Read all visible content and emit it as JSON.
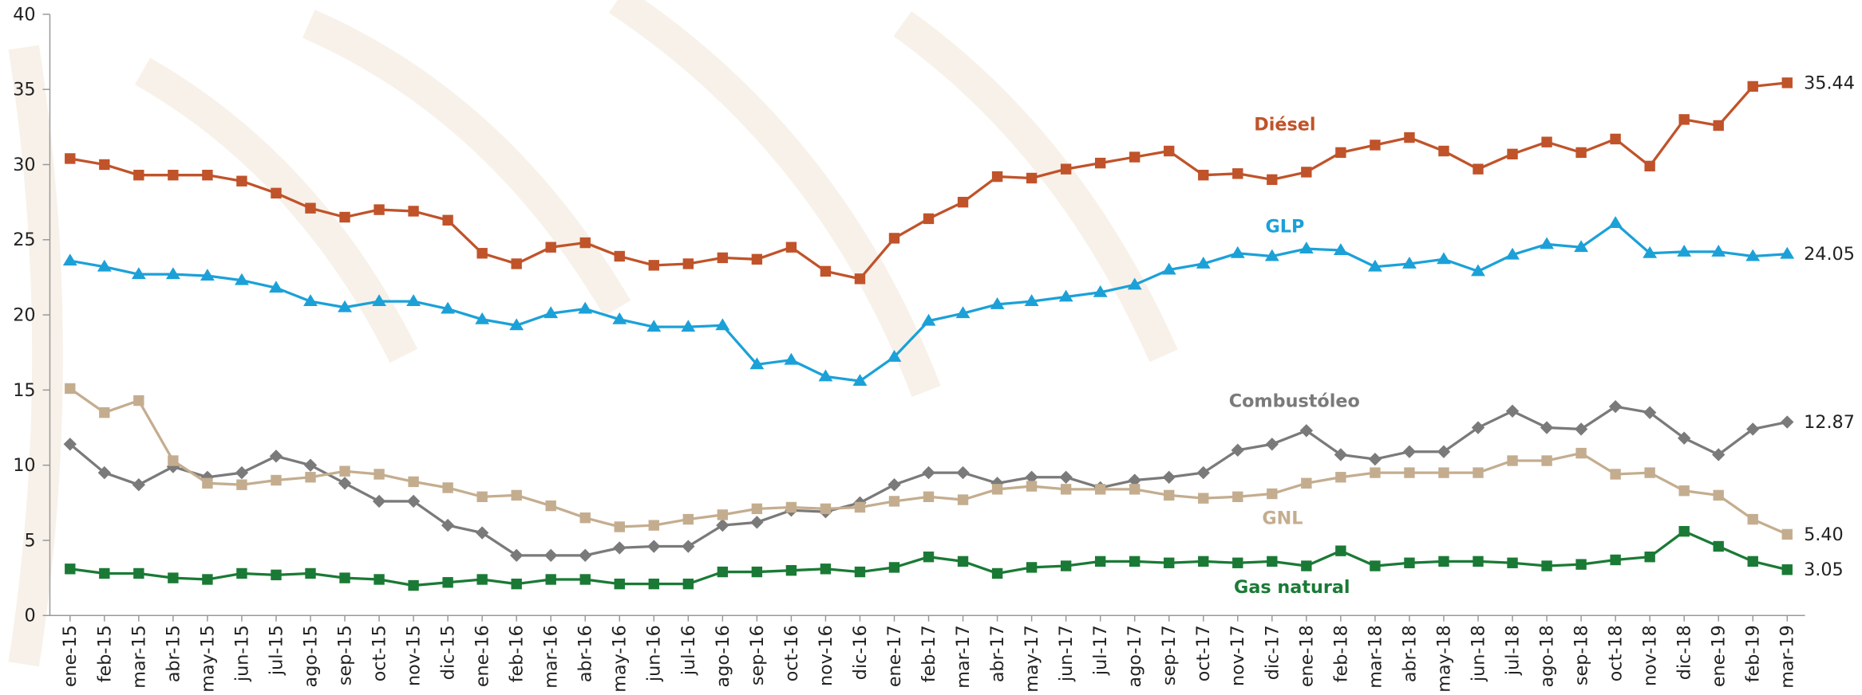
{
  "chart_data": {
    "type": "line",
    "categories": [
      "ene-15",
      "feb-15",
      "mar-15",
      "abr-15",
      "may-15",
      "jun-15",
      "jul-15",
      "ago-15",
      "sep-15",
      "oct-15",
      "nov-15",
      "dic-15",
      "ene-16",
      "feb-16",
      "mar-16",
      "abr-16",
      "may-16",
      "jun-16",
      "jul-16",
      "ago-16",
      "sep-16",
      "oct-16",
      "nov-16",
      "dic-16",
      "ene-17",
      "feb-17",
      "mar-17",
      "abr-17",
      "may-17",
      "jun-17",
      "jul-17",
      "ago-17",
      "sep-17",
      "oct-17",
      "nov-17",
      "dic-17",
      "ene-18",
      "feb-18",
      "mar-18",
      "abr-18",
      "may-18",
      "jun-18",
      "jul-18",
      "ago-18",
      "sep-18",
      "oct-18",
      "nov-18",
      "dic-18",
      "ene-19",
      "feb-19",
      "mar-19"
    ],
    "ylim": [
      0,
      40
    ],
    "yticks": [
      0,
      5,
      10,
      15,
      20,
      25,
      30,
      35,
      40
    ],
    "series": [
      {
        "name": "Diésel",
        "color": "#c0532a",
        "marker": "square",
        "values": [
          30.4,
          30.0,
          29.3,
          29.3,
          29.3,
          28.9,
          28.1,
          27.1,
          26.5,
          27.0,
          26.9,
          26.3,
          24.1,
          23.4,
          24.5,
          24.8,
          23.9,
          23.3,
          23.4,
          23.8,
          23.7,
          24.5,
          22.9,
          22.4,
          25.1,
          26.4,
          27.5,
          29.2,
          29.1,
          29.7,
          30.1,
          30.5,
          30.9,
          29.3,
          29.4,
          29.0,
          29.5,
          30.8,
          31.3,
          31.8,
          30.9,
          29.7,
          30.7,
          31.5,
          30.8,
          31.7,
          29.9,
          33.0,
          32.6,
          35.2,
          35.44
        ],
        "value_labels": [
          null,
          null,
          null,
          null,
          null,
          null,
          null,
          null,
          null,
          null,
          null,
          null,
          null,
          null,
          null,
          null,
          null,
          null,
          null,
          null,
          null,
          null,
          null,
          null,
          null,
          null,
          null,
          null,
          null,
          null,
          null,
          null,
          null,
          null,
          null,
          null,
          null,
          null,
          null,
          null,
          null,
          null,
          null,
          null,
          null,
          null,
          null,
          null,
          null,
          null,
          "35.44"
        ]
      },
      {
        "name": "GLP",
        "color": "#1ba1d8",
        "marker": "triangle",
        "values": [
          23.6,
          23.2,
          22.7,
          22.7,
          22.6,
          22.3,
          21.8,
          20.9,
          20.5,
          20.9,
          20.9,
          20.4,
          19.7,
          19.3,
          20.1,
          20.4,
          19.7,
          19.2,
          19.2,
          19.3,
          16.7,
          17.0,
          15.9,
          15.6,
          17.2,
          19.6,
          20.1,
          20.7,
          20.9,
          21.2,
          21.5,
          22.0,
          23.0,
          23.4,
          24.1,
          23.9,
          24.4,
          24.3,
          23.2,
          23.4,
          23.7,
          22.9,
          24.0,
          24.7,
          24.5,
          26.1,
          24.1,
          24.2,
          24.2,
          23.9,
          24.05
        ],
        "value_labels": [
          null,
          null,
          null,
          null,
          null,
          null,
          null,
          null,
          null,
          null,
          null,
          null,
          null,
          null,
          null,
          null,
          null,
          null,
          null,
          null,
          null,
          null,
          null,
          null,
          null,
          null,
          null,
          null,
          null,
          null,
          null,
          null,
          null,
          null,
          null,
          null,
          null,
          null,
          null,
          null,
          null,
          null,
          null,
          null,
          null,
          null,
          null,
          null,
          null,
          null,
          "24.05"
        ]
      },
      {
        "name": "Combustóleo",
        "color": "#7a7a7a",
        "marker": "diamond",
        "values": [
          11.4,
          9.5,
          8.7,
          9.9,
          9.2,
          9.5,
          10.6,
          10.0,
          8.8,
          7.6,
          7.6,
          6.0,
          5.5,
          4.0,
          4.0,
          4.0,
          4.5,
          4.6,
          4.6,
          6.0,
          6.2,
          7.0,
          6.9,
          7.5,
          8.7,
          9.5,
          9.5,
          8.8,
          9.2,
          9.2,
          8.5,
          9.0,
          9.2,
          9.5,
          11.0,
          11.4,
          12.3,
          10.7,
          10.4,
          10.9,
          10.9,
          12.5,
          13.6,
          12.5,
          12.4,
          13.9,
          13.5,
          11.8,
          10.7,
          12.4,
          12.87
        ],
        "value_labels": [
          null,
          null,
          null,
          null,
          null,
          null,
          null,
          null,
          null,
          null,
          null,
          null,
          null,
          null,
          null,
          null,
          null,
          null,
          null,
          null,
          null,
          null,
          null,
          null,
          null,
          null,
          null,
          null,
          null,
          null,
          null,
          null,
          null,
          null,
          null,
          null,
          null,
          null,
          null,
          null,
          null,
          null,
          null,
          null,
          null,
          null,
          null,
          null,
          null,
          null,
          "12.87"
        ]
      },
      {
        "name": "GNL",
        "color": "#c4ad8f",
        "marker": "square",
        "values": [
          15.1,
          13.5,
          14.3,
          10.3,
          8.8,
          8.7,
          9.0,
          9.2,
          9.6,
          9.4,
          8.9,
          8.5,
          7.9,
          8.0,
          7.3,
          6.5,
          5.9,
          6.0,
          6.4,
          6.7,
          7.1,
          7.2,
          7.1,
          7.2,
          7.6,
          7.9,
          7.7,
          8.4,
          8.6,
          8.4,
          8.4,
          8.4,
          8.0,
          7.8,
          7.9,
          8.1,
          8.8,
          9.2,
          9.5,
          9.5,
          9.5,
          9.5,
          10.3,
          10.3,
          10.8,
          9.4,
          9.5,
          8.3,
          8.0,
          6.4,
          5.4
        ],
        "value_labels": [
          null,
          null,
          null,
          null,
          null,
          null,
          null,
          null,
          null,
          null,
          null,
          null,
          null,
          null,
          null,
          null,
          null,
          null,
          null,
          null,
          null,
          null,
          null,
          null,
          null,
          null,
          null,
          null,
          null,
          null,
          null,
          null,
          null,
          null,
          null,
          null,
          null,
          null,
          null,
          null,
          null,
          null,
          null,
          null,
          null,
          null,
          null,
          null,
          null,
          null,
          "5.40"
        ]
      },
      {
        "name": "Gas natural",
        "color": "#1a7a35",
        "marker": "square",
        "values": [
          3.1,
          2.8,
          2.8,
          2.5,
          2.4,
          2.8,
          2.7,
          2.8,
          2.5,
          2.4,
          2.0,
          2.2,
          2.4,
          2.1,
          2.4,
          2.4,
          2.1,
          2.1,
          2.1,
          2.9,
          2.9,
          3.0,
          3.1,
          2.9,
          3.2,
          3.9,
          3.6,
          2.8,
          3.2,
          3.3,
          3.6,
          3.6,
          3.5,
          3.6,
          3.5,
          3.6,
          3.3,
          4.3,
          3.3,
          3.5,
          3.6,
          3.6,
          3.5,
          3.3,
          3.4,
          3.7,
          3.9,
          5.6,
          4.6,
          3.6,
          3.05
        ],
        "value_labels": [
          null,
          null,
          null,
          null,
          null,
          null,
          null,
          null,
          null,
          null,
          null,
          null,
          null,
          null,
          null,
          null,
          null,
          null,
          null,
          null,
          null,
          null,
          null,
          null,
          null,
          null,
          null,
          null,
          null,
          null,
          null,
          null,
          null,
          null,
          null,
          null,
          null,
          null,
          null,
          null,
          null,
          null,
          null,
          null,
          null,
          null,
          null,
          null,
          null,
          null,
          "3.05"
        ]
      }
    ]
  }
}
